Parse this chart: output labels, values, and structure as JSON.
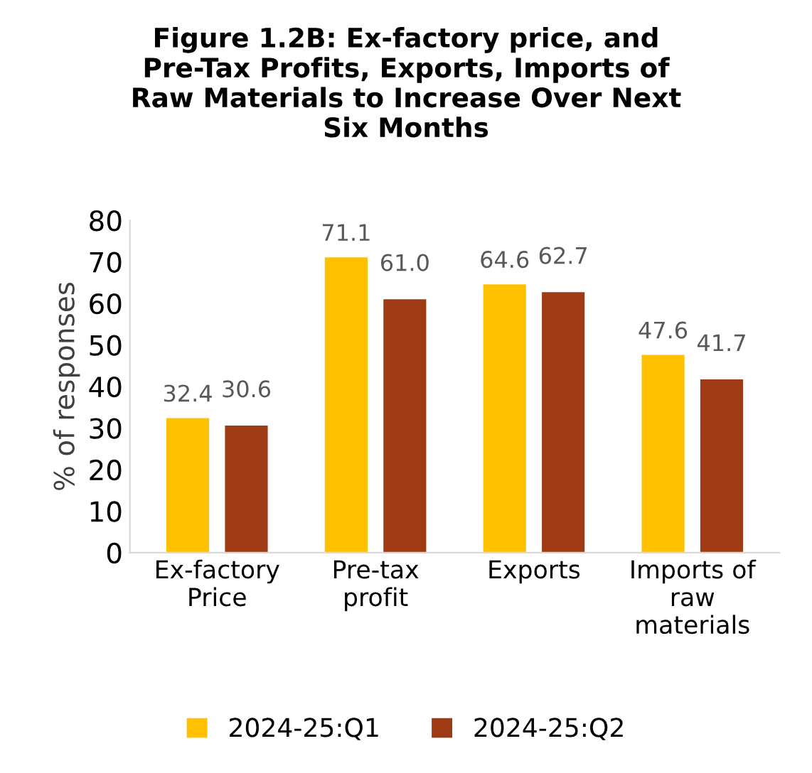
{
  "chart_data": {
    "type": "bar",
    "title": "Figure 1.2B: Ex-factory price, and\nPre-Tax Profits, Exports, Imports of\nRaw Materials to Increase Over Next\nSix Months",
    "ylabel": "% of responses",
    "categories": [
      "Ex-factory\nPrice",
      "Pre-tax\nprofit",
      "Exports",
      "Imports of\nraw\nmaterials"
    ],
    "series": [
      {
        "name": "2024-25:Q1",
        "color": "#ffc000",
        "values": [
          32.4,
          71.1,
          64.6,
          47.6
        ],
        "value_labels": [
          "32.4",
          "71.1",
          "64.6",
          "47.6"
        ]
      },
      {
        "name": "2024-25:Q2",
        "color": "#9e3a14",
        "values": [
          30.6,
          61.0,
          62.7,
          41.7
        ],
        "value_labels": [
          "30.6",
          "61.0",
          "62.7",
          "41.7"
        ]
      }
    ],
    "ylim": [
      0,
      80
    ],
    "yticks": [
      0,
      10,
      20,
      30,
      40,
      50,
      60,
      70,
      80
    ],
    "grid": false,
    "legend": "bottom"
  }
}
